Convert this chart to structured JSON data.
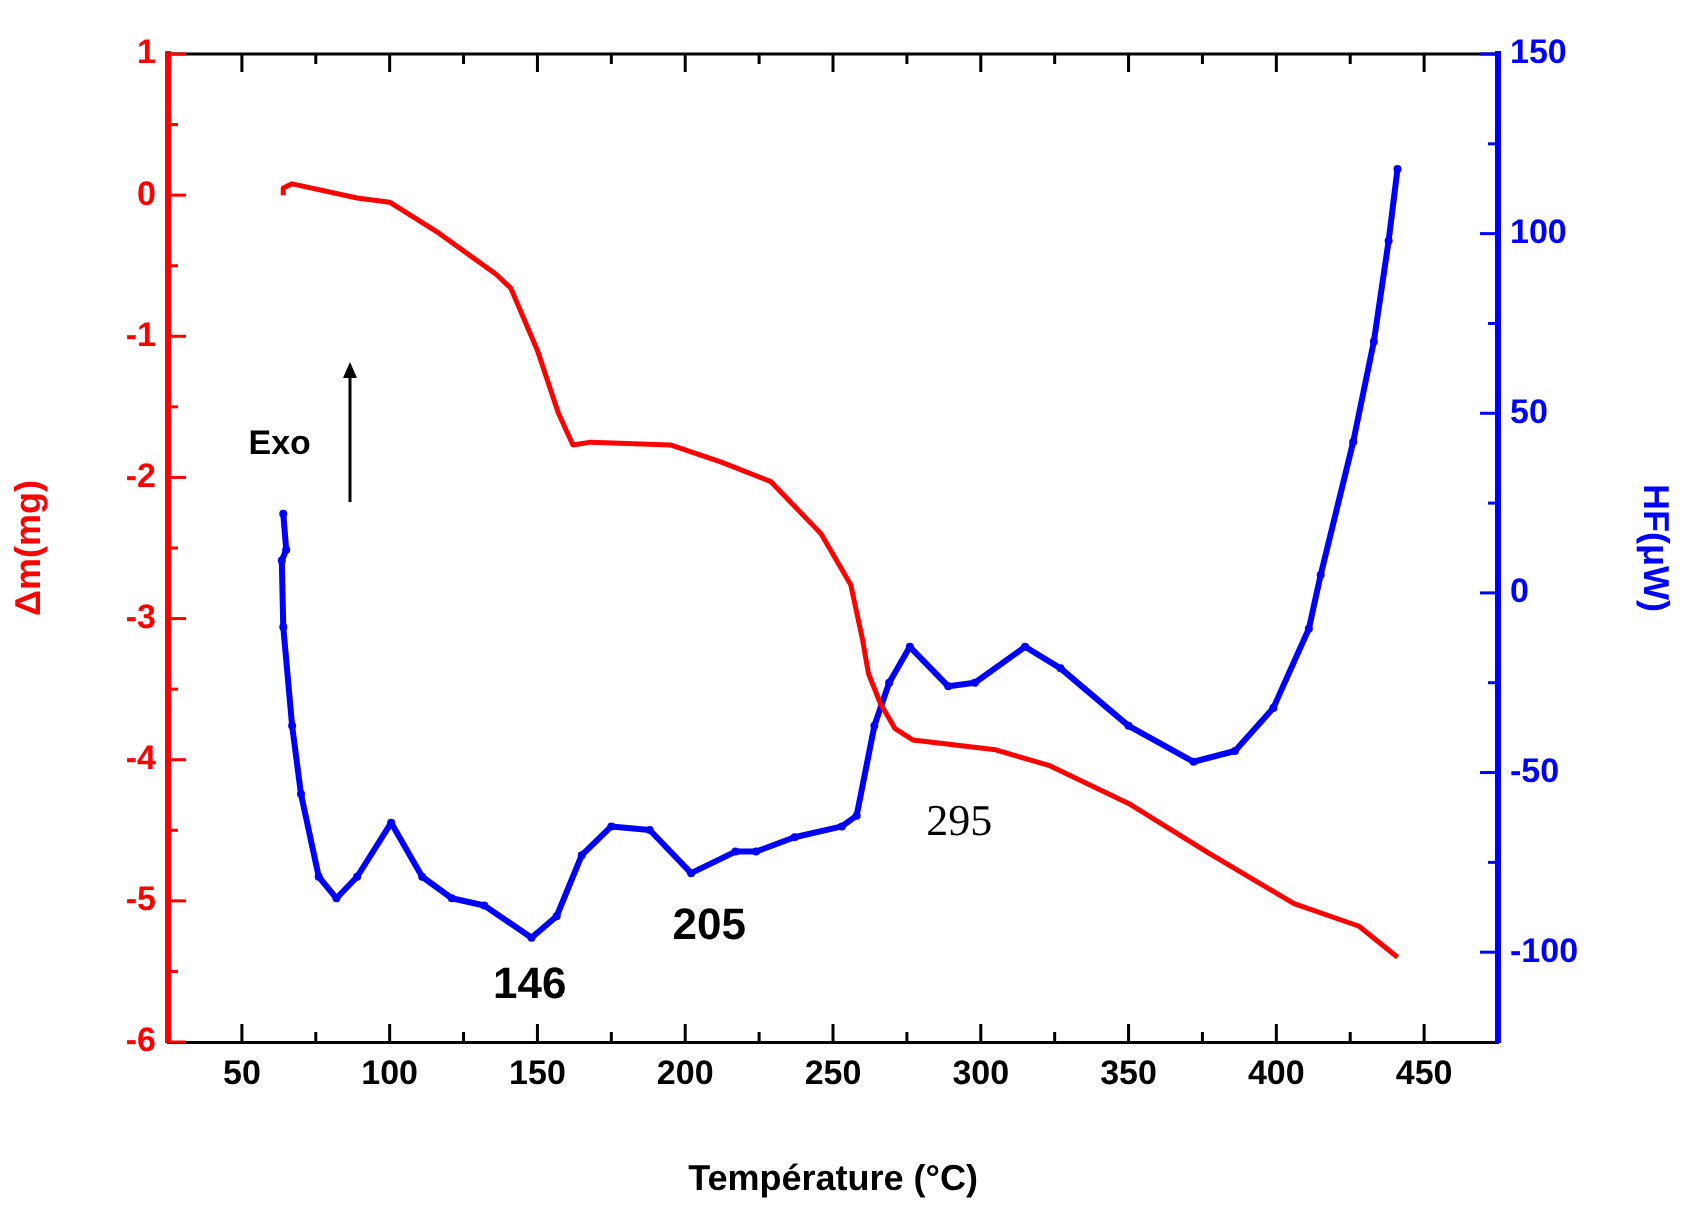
{
  "chart_data": {
    "type": "line",
    "xlabel": "Température (°C)",
    "ylabel": "Δm(mg)",
    "y2label": "HF(μW)",
    "xlim": [
      25,
      475
    ],
    "xticks": [
      50,
      {
        "value": 75,
        "label": null
      },
      100,
      {
        "value": 125,
        "label": null
      },
      150,
      {
        "value": 175,
        "label": null
      },
      200,
      {
        "value": 225,
        "label": null
      },
      250,
      {
        "value": 275,
        "label": null
      },
      300,
      {
        "value": 325,
        "label": null
      },
      350,
      {
        "value": 375,
        "label": null
      },
      400,
      {
        "value": 425,
        "label": null
      },
      450
    ],
    "ylim": [
      -6,
      1
    ],
    "yticks": [
      -6,
      {
        "value": -5.5,
        "label": null
      },
      -5,
      {
        "value": -4.5,
        "label": null
      },
      -4,
      {
        "value": -3.5,
        "label": null
      },
      -3,
      {
        "value": -2.5,
        "label": null
      },
      -2,
      {
        "value": -1.5,
        "label": null
      },
      -1,
      {
        "value": -0.5,
        "label": null
      },
      0,
      {
        "value": 0.5,
        "label": null
      },
      1
    ],
    "y2lim": [
      -125,
      150
    ],
    "y2ticks": [
      -100,
      {
        "value": -75,
        "label": null
      },
      -50,
      {
        "value": -25,
        "label": null
      },
      0,
      {
        "value": 25,
        "label": null
      },
      50,
      {
        "value": 75,
        "label": null
      },
      100,
      {
        "value": 125,
        "label": null
      },
      150
    ],
    "grid": false,
    "legend": false,
    "series": [
      {
        "color": "#ff0000",
        "marker": "none",
        "x": [
          64,
          64,
          67,
          89,
          100,
          116,
          136,
          141,
          150,
          157,
          162,
          168,
          195,
          212,
          229,
          246,
          256,
          260,
          262,
          266,
          271,
          277,
          305,
          323,
          350,
          377,
          406,
          428,
          441
        ],
        "values": [
          0.0,
          0.05,
          0.08,
          -0.02,
          -0.05,
          -0.26,
          -0.56,
          -0.66,
          -1.1,
          -1.54,
          -1.77,
          -1.75,
          -1.77,
          -1.89,
          -2.03,
          -2.4,
          -2.76,
          -3.15,
          -3.39,
          -3.6,
          -3.78,
          -3.86,
          -3.93,
          -4.04,
          -4.31,
          -4.66,
          -5.02,
          -5.18,
          -5.4
        ]
      },
      {
        "color": "#0000ff",
        "marker": "circle",
        "axis": "y2",
        "x": [
          64,
          65,
          63.5,
          64,
          67,
          70,
          76,
          82,
          89,
          100.5,
          111,
          121,
          132,
          148,
          156.5,
          165,
          175,
          188,
          202,
          217,
          224,
          237,
          253,
          258,
          264,
          269,
          276,
          289,
          298,
          315,
          327,
          350,
          372,
          386,
          399,
          411,
          415,
          426,
          433,
          438,
          441
        ],
        "values": [
          22,
          12,
          9,
          -9.5,
          -37,
          -56,
          -79,
          -85,
          -79,
          -64,
          -79,
          -85,
          -87,
          -96,
          -90,
          -73,
          -65,
          -66,
          -78,
          -72,
          -72,
          -68,
          -65,
          -62,
          -37,
          -25,
          -15,
          -26,
          -25,
          -15,
          -21,
          -37,
          -47,
          -44,
          -32,
          -10,
          5,
          42,
          70,
          98,
          118
        ]
      }
    ],
    "annotations": [
      "Exo",
      "146",
      "205",
      "295"
    ]
  }
}
